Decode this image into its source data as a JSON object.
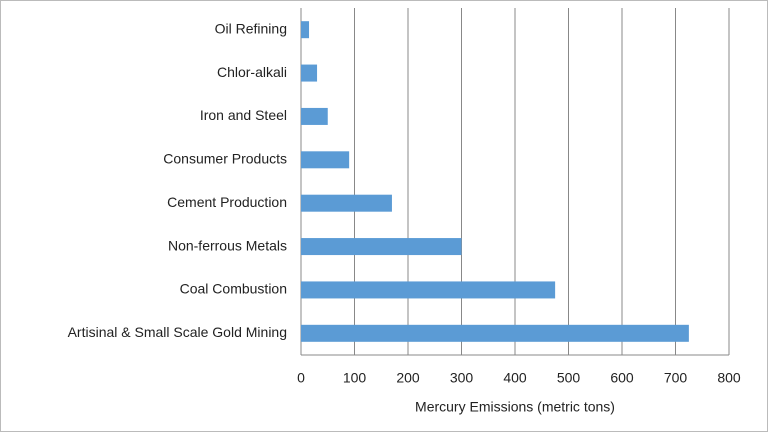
{
  "chart_data": {
    "type": "bar",
    "orientation": "horizontal",
    "xlabel": "Mercury Emissions (metric tons)",
    "categories": [
      "Oil Refining",
      "Chlor-alkali",
      "Iron and Steel",
      "Consumer Products",
      "Cement Production",
      "Non-ferrous Metals",
      "Coal Combustion",
      "Artisinal & Small Scale Gold Mining"
    ],
    "values": [
      15,
      30,
      50,
      90,
      170,
      300,
      475,
      725
    ],
    "color": "#5b9bd5",
    "xlim": [
      0,
      800
    ],
    "xticks": [
      0,
      100,
      200,
      300,
      400,
      500,
      600,
      700,
      800
    ],
    "grid": true
  }
}
